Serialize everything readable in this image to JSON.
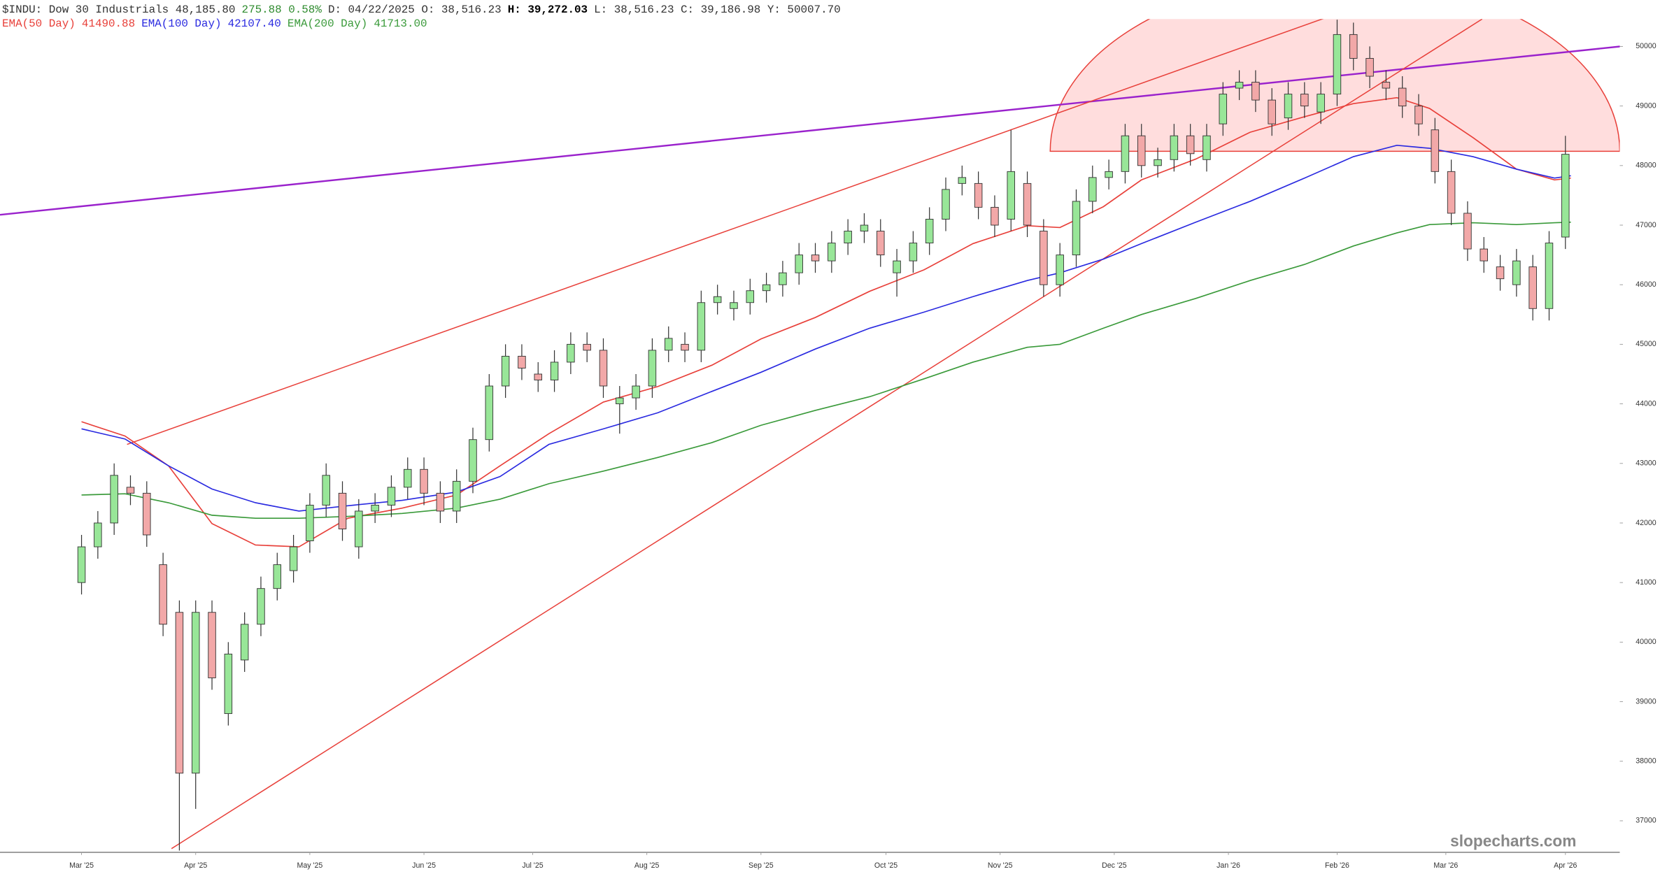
{
  "chart_data": {
    "type": "candlestick",
    "header": [
      {
        "text": "$INDU: Dow 30 Industrials 48,185.80",
        "color": "#333333",
        "bold": false
      },
      {
        "text": "275.88 0.58%",
        "color": "#2e8b2e",
        "bold": false
      },
      {
        "text": "D: 04/22/2025 O: 38,516.23",
        "color": "#333333",
        "bold": false
      },
      {
        "text": "H: 39,272.03",
        "color": "#000000",
        "bold": true
      },
      {
        "text": "L: 38,516.23 C: 39,186.98 Y:  50007.70",
        "color": "#333333",
        "bold": false
      }
    ],
    "watermark": "slopecharts.com",
    "xlim": [
      -15,
      283
    ],
    "xticks": [
      {
        "value": 0,
        "label": "Mar '25"
      },
      {
        "value": 21,
        "label": "Apr '25"
      },
      {
        "value": 42,
        "label": "May '25"
      },
      {
        "value": 63,
        "label": "Jun '25"
      },
      {
        "value": 83,
        "label": "Jul '25"
      },
      {
        "value": 104,
        "label": "Aug '25"
      },
      {
        "value": 125,
        "label": "Sep '25"
      },
      {
        "value": 148,
        "label": "Oct '25"
      },
      {
        "value": 169,
        "label": "Nov '25"
      },
      {
        "value": 190,
        "label": "Dec '25"
      },
      {
        "value": 211,
        "label": "Jan '26"
      },
      {
        "value": 231,
        "label": "Feb '26"
      },
      {
        "value": 251,
        "label": "Mar '26"
      },
      {
        "value": 273,
        "label": "Apr '26"
      }
    ],
    "ylim": [
      36480,
      50460
    ],
    "yticks": [
      37000,
      38000,
      39000,
      40000,
      41000,
      42000,
      43000,
      44000,
      45000,
      46000,
      47000,
      48000,
      49000,
      50000
    ],
    "up_color": "#98e698",
    "down_color": "#f2a8a8",
    "candles": {
      "x": [
        0,
        3,
        6,
        9,
        12,
        15,
        18,
        21,
        24,
        27,
        30,
        33,
        36,
        39,
        42,
        45,
        48,
        51,
        54,
        57,
        60,
        63,
        66,
        69,
        72,
        75,
        78,
        81,
        84,
        87,
        90,
        93,
        96,
        99,
        102,
        105,
        108,
        111,
        114,
        117,
        120,
        123,
        126,
        129,
        132,
        135,
        138,
        141,
        144,
        147,
        150,
        153,
        156,
        159,
        162,
        165,
        168,
        171,
        174,
        177,
        180,
        183,
        186,
        189,
        192,
        195,
        198,
        201,
        204,
        207,
        210,
        213,
        216,
        219,
        222,
        225,
        228,
        231,
        234,
        237,
        240,
        243,
        246,
        249,
        252,
        255,
        258,
        261,
        264,
        267,
        270,
        273
      ],
      "open": [
        41000,
        41600,
        42000,
        42600,
        42500,
        41300,
        40500,
        37800,
        40500,
        38800,
        39700,
        40300,
        40900,
        41200,
        41700,
        42300,
        42500,
        41600,
        42200,
        42300,
        42600,
        42900,
        42500,
        42200,
        42700,
        43400,
        44300,
        44800,
        44500,
        44400,
        44700,
        45000,
        44900,
        44000,
        44100,
        44300,
        44900,
        45000,
        44900,
        45700,
        45600,
        45700,
        45900,
        46000,
        46200,
        46500,
        46400,
        46700,
        46900,
        46900,
        46200,
        46400,
        46700,
        47100,
        47700,
        47700,
        47300,
        47100,
        47700,
        46900,
        46000,
        46500,
        47400,
        47800,
        47900,
        48500,
        48000,
        48100,
        48500,
        48100,
        48700,
        49300,
        49400,
        49100,
        48800,
        49200,
        48900,
        49200,
        50200,
        49800,
        49400,
        49300,
        49000,
        48600,
        47900,
        47200,
        46600,
        46300,
        46000,
        46300,
        45600,
        46800
      ],
      "high": [
        41800,
        42200,
        43000,
        42800,
        42700,
        41500,
        40700,
        40700,
        40700,
        40000,
        40500,
        41100,
        41500,
        41800,
        42500,
        43000,
        42700,
        42400,
        42500,
        42800,
        43100,
        43100,
        42700,
        42900,
        43600,
        44500,
        45000,
        45000,
        44700,
        44900,
        45200,
        45200,
        45100,
        44300,
        44500,
        45100,
        45300,
        45200,
        45900,
        46000,
        45900,
        46100,
        46200,
        46400,
        46700,
        46700,
        46900,
        47100,
        47200,
        47100,
        46600,
        46900,
        47300,
        47800,
        48000,
        47900,
        47500,
        48600,
        47900,
        47100,
        46700,
        47600,
        48000,
        48100,
        48700,
        48700,
        48300,
        48700,
        48700,
        48700,
        49400,
        49600,
        49600,
        49300,
        49400,
        49400,
        49400,
        50450,
        50400,
        50000,
        49600,
        49500,
        49200,
        48800,
        48100,
        47400,
        46800,
        46500,
        46600,
        46500,
        46900,
        48500
      ],
      "low": [
        40800,
        41400,
        41800,
        42300,
        41600,
        40100,
        36500,
        37200,
        39200,
        38600,
        39500,
        40100,
        40700,
        41000,
        41500,
        42100,
        41700,
        41400,
        42000,
        42100,
        42400,
        42300,
        42000,
        42000,
        42500,
        43200,
        44100,
        44400,
        44200,
        44200,
        44500,
        44700,
        44100,
        43500,
        43900,
        44100,
        44700,
        44700,
        44700,
        45500,
        45400,
        45500,
        45700,
        45800,
        46000,
        46200,
        46200,
        46500,
        46700,
        46300,
        45800,
        46200,
        46500,
        46900,
        47500,
        47100,
        46800,
        46900,
        46800,
        45800,
        45800,
        46300,
        47200,
        47600,
        47700,
        47800,
        47800,
        47900,
        48000,
        47900,
        48500,
        49100,
        48900,
        48500,
        48600,
        48800,
        48700,
        49000,
        49600,
        49300,
        49100,
        48800,
        48500,
        47700,
        47000,
        46400,
        46200,
        45900,
        45800,
        45400,
        45400,
        46600
      ],
      "close": [
        41600,
        42000,
        42800,
        42500,
        41800,
        40300,
        37800,
        40500,
        39400,
        39800,
        40300,
        40900,
        41300,
        41600,
        42300,
        42800,
        41900,
        42200,
        42300,
        42600,
        42900,
        42500,
        42200,
        42700,
        43400,
        44300,
        44800,
        44600,
        44400,
        44700,
        45000,
        44900,
        44300,
        44100,
        44300,
        44900,
        45100,
        44900,
        45700,
        45800,
        45700,
        45900,
        46000,
        46200,
        46500,
        46400,
        46700,
        46900,
        47000,
        46500,
        46400,
        46700,
        47100,
        47600,
        47800,
        47300,
        47000,
        47900,
        47000,
        46000,
        46500,
        47400,
        47800,
        47900,
        48500,
        48000,
        48100,
        48500,
        48200,
        48500,
        49200,
        49400,
        49100,
        48700,
        49200,
        49000,
        49200,
        50200,
        49800,
        49500,
        49300,
        49000,
        48700,
        47900,
        47200,
        46600,
        46400,
        46100,
        46400,
        45600,
        46700,
        48190
      ]
    },
    "ema_x": [
      0,
      8,
      16,
      24,
      32,
      40,
      49,
      59,
      69,
      77,
      86,
      96,
      106,
      116,
      125,
      135,
      145,
      155,
      164,
      174,
      180,
      188,
      195,
      205,
      215,
      225,
      234,
      242,
      248,
      256,
      264,
      271,
      274
    ],
    "series": [
      {
        "name": "EMA(50 Day)",
        "readout": "41490.88",
        "color": "#e8403a",
        "values": [
          43700,
          43460,
          42960,
          41990,
          41630,
          41600,
          42080,
          42250,
          42470,
          42960,
          43500,
          44030,
          44290,
          44650,
          45090,
          45450,
          45890,
          46250,
          46690,
          46990,
          46960,
          47310,
          47760,
          48110,
          48560,
          48820,
          49040,
          49140,
          48960,
          48470,
          47940,
          47760,
          47790
        ]
      },
      {
        "name": "EMA(100 Day)",
        "readout": "42107.40",
        "color": "#2a2ae0",
        "values": [
          43580,
          43410,
          42960,
          42570,
          42340,
          42200,
          42290,
          42380,
          42520,
          42780,
          43320,
          43580,
          43850,
          44210,
          44530,
          44920,
          45270,
          45540,
          45800,
          46070,
          46200,
          46430,
          46690,
          47050,
          47400,
          47790,
          48150,
          48340,
          48290,
          48150,
          47940,
          47790,
          47830
        ]
      },
      {
        "name": "EMA(200 Day)",
        "readout": "41713.00",
        "color": "#3a9a3a",
        "values": [
          42470,
          42490,
          42340,
          42130,
          42080,
          42080,
          42110,
          42160,
          42250,
          42400,
          42660,
          42870,
          43100,
          43350,
          43640,
          43890,
          44120,
          44420,
          44700,
          44950,
          45000,
          45270,
          45500,
          45770,
          46070,
          46340,
          46650,
          46870,
          47010,
          47040,
          47010,
          47040,
          47050
        ]
      }
    ]
  }
}
